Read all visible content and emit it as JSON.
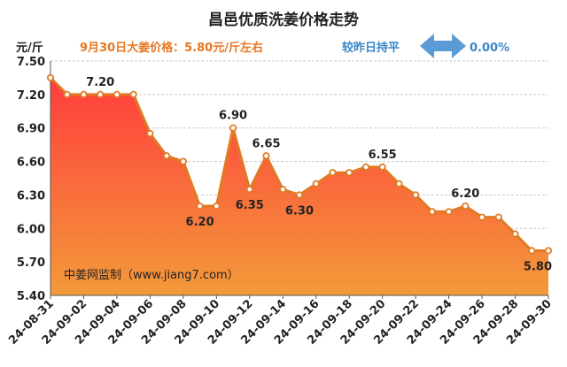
{
  "title": "昌邑优质洗姜价格走势",
  "unit_label": "元/斤",
  "price_note": "9月30日大姜价格：5.80元/斤左右",
  "compare_label": "较昨日持平",
  "compare_value": "0.00%",
  "watermark": "中姜网监制（www.jiang7.com）",
  "colors": {
    "title": "#222222",
    "accent": "#e87722",
    "compare": "#3a86c8",
    "arrow": "#5b9bd5",
    "line": "#e07b25",
    "fill_top": "#ff3d3d",
    "fill_bottom": "#f39a3a"
  },
  "chart_data": {
    "type": "area",
    "title": "昌邑优质洗姜价格走势",
    "ylabel": "元/斤",
    "xlabel": "",
    "ylim": [
      5.4,
      7.5
    ],
    "yticks": [
      "7.50",
      "7.20",
      "6.90",
      "6.60",
      "6.30",
      "6.00",
      "5.70",
      "5.40"
    ],
    "grid": true,
    "x": [
      "24-08-31",
      "24-09-01",
      "24-09-02",
      "24-09-03",
      "24-09-04",
      "24-09-05",
      "24-09-06",
      "24-09-07",
      "24-09-08",
      "24-09-09",
      "24-09-10",
      "24-09-11",
      "24-09-12",
      "24-09-13",
      "24-09-14",
      "24-09-15",
      "24-09-16",
      "24-09-17",
      "24-09-18",
      "24-09-19",
      "24-09-20",
      "24-09-21",
      "24-09-22",
      "24-09-23",
      "24-09-24",
      "24-09-25",
      "24-09-26",
      "24-09-27",
      "24-09-28",
      "24-09-29",
      "24-09-30"
    ],
    "xtick_labels": [
      "24-08-31",
      "24-09-02",
      "24-09-04",
      "24-09-06",
      "24-09-08",
      "24-09-10",
      "24-09-12",
      "24-09-14",
      "24-09-16",
      "24-09-18",
      "24-09-20",
      "24-09-22",
      "24-09-24",
      "24-09-26",
      "24-09-28",
      "24-09-30"
    ],
    "values": [
      7.35,
      7.2,
      7.2,
      7.2,
      7.2,
      7.2,
      6.85,
      6.65,
      6.6,
      6.2,
      6.2,
      6.9,
      6.35,
      6.65,
      6.35,
      6.3,
      6.4,
      6.5,
      6.5,
      6.55,
      6.55,
      6.4,
      6.3,
      6.15,
      6.15,
      6.2,
      6.1,
      6.1,
      5.95,
      5.8,
      5.8
    ],
    "annotations": [
      {
        "index": 3,
        "text": "7.20",
        "pos": "above"
      },
      {
        "index": 9,
        "text": "6.20",
        "pos": "below"
      },
      {
        "index": 11,
        "text": "6.90",
        "pos": "above"
      },
      {
        "index": 12,
        "text": "6.35",
        "pos": "below"
      },
      {
        "index": 13,
        "text": "6.65",
        "pos": "above"
      },
      {
        "index": 15,
        "text": "6.30",
        "pos": "below"
      },
      {
        "index": 20,
        "text": "6.55",
        "pos": "above"
      },
      {
        "index": 25,
        "text": "6.20",
        "pos": "above"
      },
      {
        "index": 30,
        "text": "5.80",
        "pos": "below"
      }
    ]
  }
}
